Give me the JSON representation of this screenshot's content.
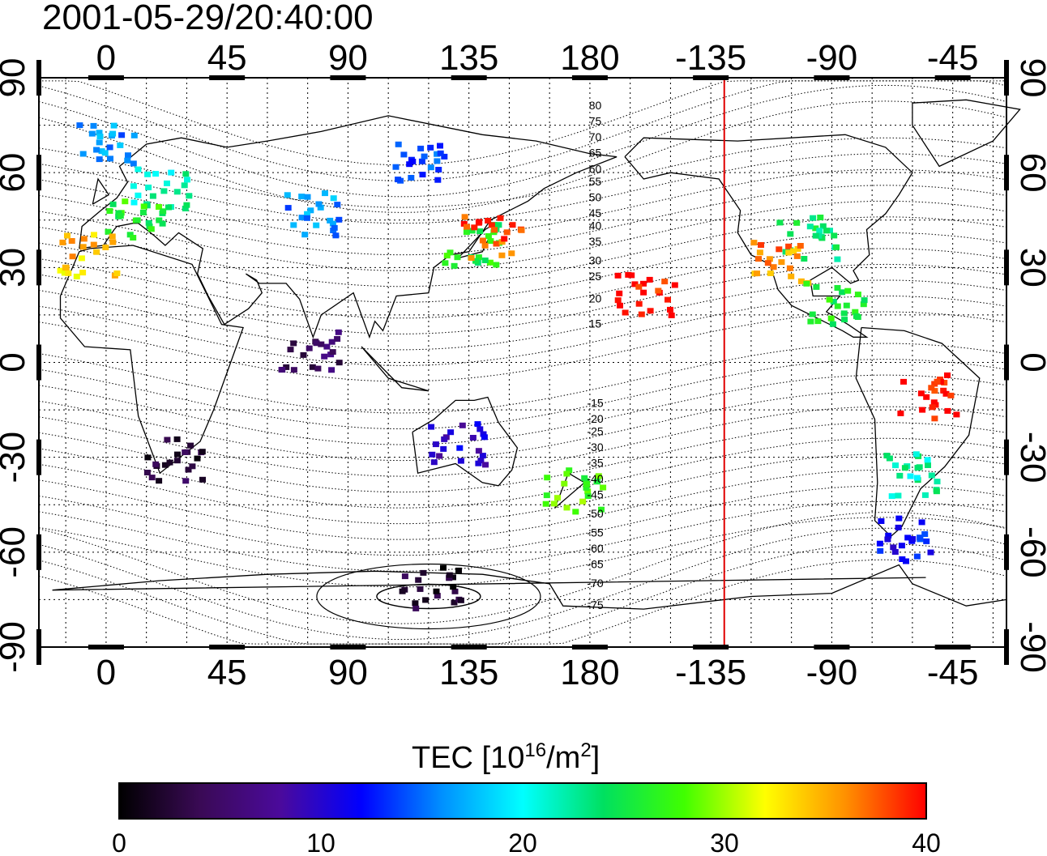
{
  "timestamp": "2001-05-29/20:40:00",
  "map": {
    "projection": "cylindrical",
    "lon_range": [
      -25,
      335
    ],
    "lat_range": [
      -90,
      90
    ],
    "grid": true,
    "top_lon_ticks": [
      "0",
      "45",
      "90",
      "135",
      "180",
      "-135",
      "-90",
      "-45"
    ],
    "bottom_lon_ticks": [
      "0",
      "45",
      "90",
      "135",
      "180",
      "-135",
      "-90",
      "-45"
    ],
    "lon_tick_values": [
      0,
      45,
      90,
      135,
      180,
      225,
      270,
      315
    ],
    "left_lat_ticks": [
      "90",
      "60",
      "30",
      "0",
      "-30",
      "-60",
      "-90"
    ],
    "right_lat_ticks": [
      "90",
      "60",
      "30",
      "0",
      "-30",
      "-60",
      "-90"
    ],
    "lat_tick_values": [
      90,
      60,
      30,
      0,
      -30,
      -60,
      -90
    ],
    "terminator_line": {
      "lon": -130,
      "color": "#e00000"
    },
    "magnetic_lat_labels": [
      "80",
      "75",
      "70",
      "65",
      "60",
      "55",
      "50",
      "45",
      "40",
      "35",
      "30",
      "25",
      "20",
      "15",
      "-15",
      "-20",
      "-25",
      "-30",
      "-35",
      "-40",
      "-45",
      "-50",
      "-55",
      "-60",
      "-65",
      "-70",
      "-75"
    ],
    "magnetic_lat_label_lats": [
      81,
      76,
      71,
      66,
      61,
      57,
      52,
      47,
      43,
      38,
      32,
      27,
      20,
      12,
      -13,
      -18,
      -22,
      -27,
      -32,
      -37,
      -42,
      -48,
      -54,
      -59,
      -64,
      -70,
      -77
    ],
    "magnetic_lat_label_lon": 182
  },
  "colorbar": {
    "title": "TEC  [10",
    "title_sup1": "16",
    "title_mid": "/m",
    "title_sup2": "2",
    "title_end": "]",
    "ticks": [
      "0",
      "10",
      "20",
      "30",
      "40"
    ],
    "range": [
      0,
      40
    ],
    "colors": [
      "#000000",
      "#3a0a55",
      "#4b0a9c",
      "#0000ff",
      "#0090ff",
      "#00ffff",
      "#00e060",
      "#40ff00",
      "#ffff00",
      "#ff9000",
      "#ff0000"
    ]
  },
  "chart_data": {
    "type": "heatmap",
    "title": "2001-05-29/20:40:00",
    "value_label": "TEC [10^16/m^2]",
    "value_range": [
      0,
      40
    ],
    "regions": [
      {
        "lon": 0,
        "lat": 70,
        "tec": 16
      },
      {
        "lon": 20,
        "lat": 55,
        "tec": 22
      },
      {
        "lon": 10,
        "lat": 45,
        "tec": 26
      },
      {
        "lon": -8,
        "lat": 35,
        "tec": 34
      },
      {
        "lon": 75,
        "lat": 48,
        "tec": 16
      },
      {
        "lon": 135,
        "lat": 38,
        "tec": 26
      },
      {
        "lon": 143,
        "lat": 40,
        "tec": 38
      },
      {
        "lon": 115,
        "lat": 65,
        "tec": 14
      },
      {
        "lon": -100,
        "lat": 40,
        "tec": 24
      },
      {
        "lon": -110,
        "lat": 32,
        "tec": 36
      },
      {
        "lon": -90,
        "lat": 20,
        "tec": 26
      },
      {
        "lon": -160,
        "lat": 22,
        "tec": 40
      },
      {
        "lon": 25,
        "lat": -30,
        "tec": 3
      },
      {
        "lon": 75,
        "lat": 5,
        "tec": 5
      },
      {
        "lon": 130,
        "lat": -25,
        "tec": 10
      },
      {
        "lon": 173,
        "lat": -40,
        "tec": 28
      },
      {
        "lon": -60,
        "lat": -35,
        "tec": 22
      },
      {
        "lon": -65,
        "lat": -55,
        "tec": 12
      },
      {
        "lon": -55,
        "lat": -10,
        "tec": 40
      },
      {
        "lon": 120,
        "lat": -70,
        "tec": 2
      }
    ]
  }
}
